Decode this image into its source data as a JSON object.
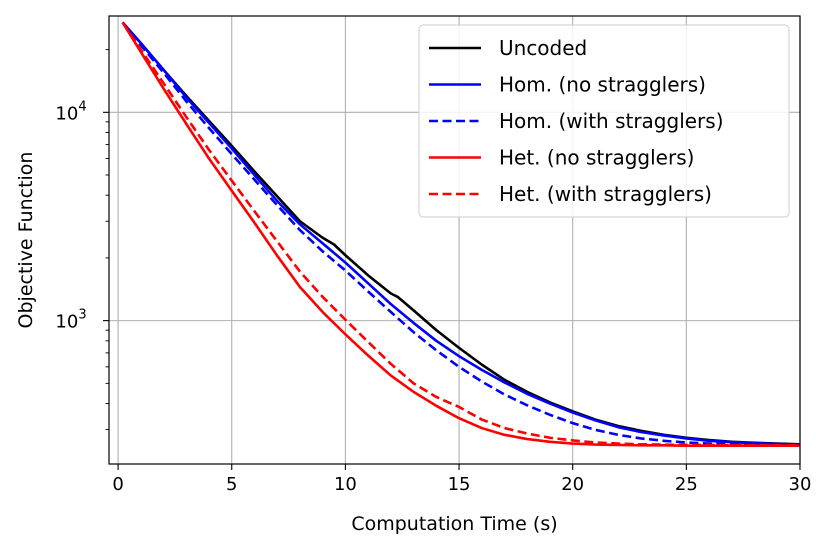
{
  "chart_data": {
    "type": "line",
    "title": "",
    "xlabel": "Computation Time (s)",
    "ylabel": "Objective Function",
    "y_scale": "log",
    "xlim": [
      -0.4,
      30
    ],
    "ylim": [
      205,
      29000
    ],
    "x_ticks": [
      0,
      5,
      10,
      15,
      20,
      25,
      30
    ],
    "x_tick_labels": [
      "0",
      "5",
      "10",
      "15",
      "20",
      "25",
      "30"
    ],
    "y_major_ticks": [
      1000,
      10000
    ],
    "y_tick_labels": [
      {
        "value": 1000,
        "base": "10",
        "exp": "3"
      },
      {
        "value": 10000,
        "base": "10",
        "exp": "4"
      }
    ],
    "y_minor_ticks": [
      300,
      400,
      500,
      600,
      700,
      800,
      900,
      2000,
      3000,
      4000,
      5000,
      6000,
      7000,
      8000,
      9000,
      20000
    ],
    "grid": true,
    "legend_position": "top-right",
    "series": [
      {
        "name": "Uncoded",
        "color": "#000000",
        "dash": "solid",
        "x": [
          0.2,
          1,
          2,
          3,
          4,
          5,
          6,
          7,
          8,
          9,
          9.5,
          10,
          11,
          12,
          12.3,
          13,
          14,
          15,
          16,
          17,
          18,
          19,
          20,
          21,
          22,
          23,
          24,
          25,
          26,
          27,
          28,
          29,
          30
        ],
        "y": [
          27000,
          21500,
          16000,
          12000,
          9100,
          6900,
          5200,
          3950,
          3000,
          2500,
          2320,
          2060,
          1650,
          1350,
          1300,
          1120,
          900,
          740,
          615,
          520,
          455,
          405,
          367,
          335,
          312,
          296,
          283,
          274,
          267,
          262,
          259,
          257,
          255
        ]
      },
      {
        "name": "Hom. (no stragglers)",
        "color": "#0000ff",
        "dash": "solid",
        "x": [
          0.2,
          1,
          2,
          3,
          4,
          5,
          6,
          7,
          8,
          9,
          10,
          11,
          12,
          13,
          14,
          15,
          16,
          17,
          18,
          19,
          20,
          21,
          22,
          23,
          24,
          25,
          26,
          27,
          28,
          29,
          30
        ],
        "y": [
          27000,
          21500,
          16000,
          11800,
          8900,
          6700,
          5000,
          3750,
          2900,
          2350,
          1900,
          1510,
          1200,
          975,
          800,
          675,
          580,
          505,
          445,
          400,
          362,
          332,
          308,
          292,
          281,
          272,
          265,
          261,
          258,
          256,
          254
        ]
      },
      {
        "name": "Hom. (with stragglers)",
        "color": "#0000ff",
        "dash": "dashed",
        "x": [
          0.2,
          1,
          2,
          3,
          4,
          5,
          6,
          7,
          8,
          9,
          10,
          11,
          12,
          13,
          14,
          15,
          16,
          17,
          18,
          19,
          20,
          21,
          22,
          23,
          24,
          25,
          26,
          27,
          28,
          29,
          30
        ],
        "y": [
          27000,
          21000,
          15500,
          11300,
          8400,
          6300,
          4750,
          3580,
          2720,
          2150,
          1740,
          1380,
          1100,
          880,
          720,
          600,
          510,
          442,
          392,
          353,
          322,
          299,
          283,
          272,
          265,
          260,
          257,
          255,
          254,
          253,
          253
        ]
      },
      {
        "name": "Het. (no stragglers)",
        "color": "#ff0000",
        "dash": "solid",
        "x": [
          0.2,
          1,
          2,
          3,
          4,
          5,
          6,
          7,
          8,
          9,
          10,
          11,
          12,
          13,
          14,
          15,
          16,
          17,
          18,
          19,
          20,
          21,
          22,
          23,
          24,
          25,
          26,
          27,
          28,
          29,
          30
        ],
        "y": [
          27000,
          19500,
          13000,
          8800,
          6000,
          4200,
          2950,
          2050,
          1450,
          1100,
          860,
          680,
          545,
          455,
          390,
          340,
          305,
          283,
          270,
          262,
          257,
          254,
          253,
          252,
          252,
          251,
          251,
          251,
          251,
          251,
          251
        ]
      },
      {
        "name": "Het. (with stragglers)",
        "color": "#ff0000",
        "dash": "dashed",
        "x": [
          0.2,
          1,
          2,
          3,
          4,
          5,
          6,
          7,
          8,
          9,
          10,
          11,
          12,
          13,
          14,
          15,
          16,
          17,
          18,
          19,
          20,
          21,
          22,
          23,
          24,
          25,
          26,
          27,
          28,
          29,
          30
        ],
        "y": [
          27000,
          20000,
          13800,
          9500,
          6600,
          4700,
          3350,
          2400,
          1720,
          1300,
          1010,
          790,
          620,
          500,
          430,
          385,
          335,
          305,
          287,
          274,
          266,
          260,
          257,
          255,
          254,
          253,
          253,
          252,
          252,
          252,
          252
        ]
      }
    ]
  }
}
